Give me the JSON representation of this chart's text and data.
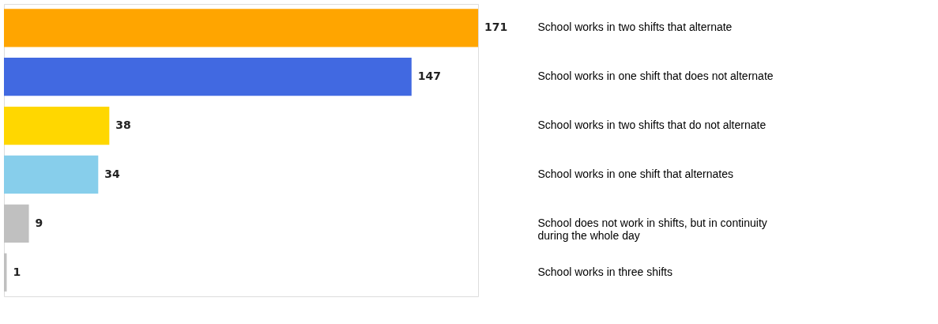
{
  "chart_data": {
    "type": "bar",
    "orientation": "horizontal",
    "categories": [
      "School works in two shifts that alternate",
      "School works in one shift that does not alternate",
      "School works in two shifts that do not alternate",
      "School works in one shift that alternates",
      "School does not work in shifts, but in continuity during the whole day",
      "School works in three shifts"
    ],
    "values": [
      171,
      147,
      38,
      34,
      9,
      1
    ],
    "colors": [
      "#ffa500",
      "#4169e1",
      "#ffd700",
      "#87ceeb",
      "#c0c0c0",
      "#c0c0c0"
    ],
    "data_labels": true,
    "grid": false
  }
}
